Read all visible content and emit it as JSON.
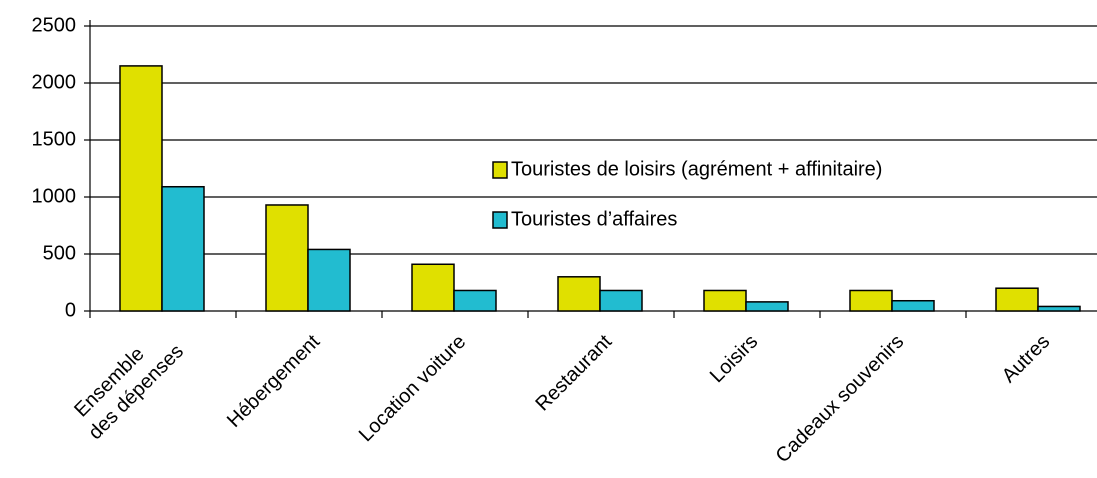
{
  "chart_data": {
    "type": "bar",
    "categories": [
      "Ensemble des dépenses",
      "Hébergement",
      "Location voiture",
      "Restaurant",
      "Loisirs",
      "Cadeaux souvenirs",
      "Autres"
    ],
    "series": [
      {
        "name": "Touristes de loisirs (agrément + affinitaire)",
        "color": "#e0e000",
        "values": [
          2150,
          930,
          410,
          300,
          180,
          180,
          200
        ]
      },
      {
        "name": "Touristes d’affaires",
        "color": "#22bcd0",
        "values": [
          1090,
          540,
          180,
          180,
          80,
          90,
          40
        ]
      }
    ],
    "ylim": [
      0,
      2500
    ],
    "yticks": [
      0,
      500,
      1000,
      1500,
      2000,
      2500
    ],
    "grid": true
  }
}
